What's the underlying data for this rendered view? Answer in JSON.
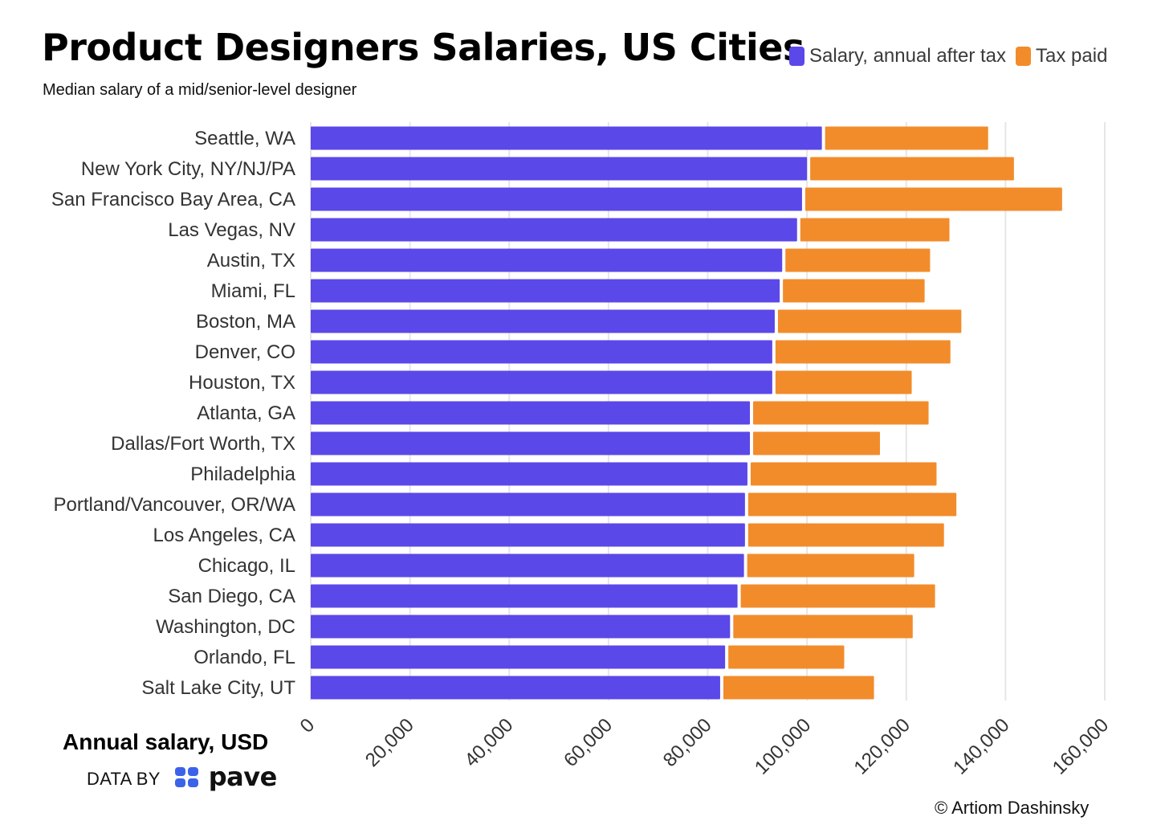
{
  "header": {
    "title": "Product Designers Salaries, US Cities",
    "subtitle": "Median salary of a mid/senior-level designer"
  },
  "colors": {
    "salary": "#5b48e8",
    "tax": "#f28c2b",
    "grid": "#e6e6e6",
    "tick_text": "#333333"
  },
  "legend": {
    "salary_label": "Salary, annual after tax",
    "tax_label": "Tax paid"
  },
  "footer": {
    "xlabel": "Annual salary, USD",
    "source_prefix": "DATA BY",
    "source_brand": "pave",
    "credit": "© Artiom Dashinsky"
  },
  "chart_data": {
    "type": "bar",
    "orientation": "horizontal",
    "stacked": true,
    "title": "Product Designers Salaries, US Cities",
    "subtitle": "Median salary of a mid/senior-level designer",
    "xlabel": "Annual salary, USD",
    "ylabel": "",
    "xlim": [
      0,
      160000
    ],
    "xticks": [
      0,
      20000,
      40000,
      60000,
      80000,
      100000,
      120000,
      140000,
      160000
    ],
    "xtick_labels": [
      "0",
      "20,000",
      "40,000",
      "60,000",
      "80,000",
      "100,000",
      "120,000",
      "140,000",
      "160,000"
    ],
    "grid": true,
    "legend_position": "top-right",
    "categories": [
      "Seattle, WA",
      "New York City, NY/NJ/PA",
      "San Francisco Bay Area, CA",
      "Las Vegas, NV",
      "Austin, TX",
      "Miami, FL",
      "Boston, MA",
      "Denver, CO",
      "Houston, TX",
      "Atlanta, GA",
      "Dallas/Fort Worth, TX",
      "Philadelphia",
      "Portland/Vancouver, OR/WA",
      "Los Angeles, CA",
      "Chicago, IL",
      "San Diego, CA",
      "Washington, DC",
      "Orlando, FL",
      "Salt Lake City, UT"
    ],
    "series": [
      {
        "name": "Salary, annual after tax",
        "values": [
          103000,
          100000,
          99000,
          98000,
          95000,
          94500,
          93500,
          93000,
          93000,
          88500,
          88500,
          88000,
          87500,
          87500,
          87300,
          86000,
          84500,
          83500,
          82500
        ]
      },
      {
        "name": "Tax paid",
        "values": [
          33500,
          41700,
          52400,
          30700,
          29800,
          29200,
          37600,
          35900,
          28100,
          36000,
          26200,
          38100,
          42600,
          40100,
          34300,
          39800,
          36800,
          24000,
          31000
        ]
      }
    ]
  }
}
